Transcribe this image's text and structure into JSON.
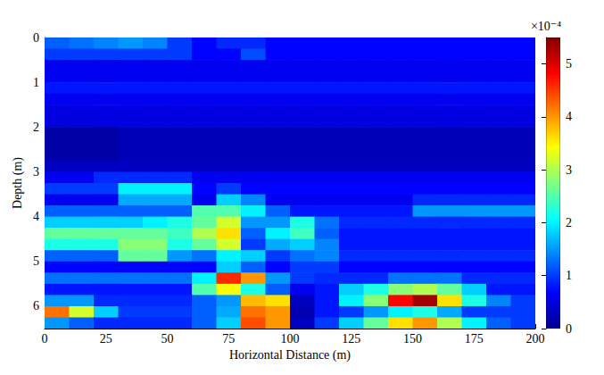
{
  "chart_data": {
    "type": "heatmap",
    "xlabel": "Horizontal Distance (m)",
    "ylabel": "Depth (m)",
    "xlim": [
      0,
      200
    ],
    "xticks": [
      0,
      25,
      50,
      75,
      100,
      125,
      150,
      175,
      200
    ],
    "ylim": [
      0,
      6.5
    ],
    "yticks": [
      0,
      1,
      2,
      3,
      4,
      5,
      6
    ],
    "grid": false,
    "x_bins": [
      0,
      10,
      20,
      30,
      40,
      50,
      60,
      70,
      80,
      90,
      100,
      110,
      120,
      130,
      140,
      150,
      160,
      170,
      180,
      190,
      200
    ],
    "y_bins": [
      0,
      0.25,
      0.5,
      0.75,
      1,
      1.25,
      1.5,
      1.75,
      2,
      2.25,
      2.5,
      2.75,
      3,
      3.25,
      3.5,
      3.75,
      4,
      4.25,
      4.5,
      4.75,
      5,
      5.25,
      5.5,
      5.75,
      6,
      6.25,
      6.5
    ],
    "values": [
      [
        1.2,
        1.3,
        1.4,
        1.5,
        1.4,
        1.0,
        0.7,
        0.9,
        0.9,
        0.7,
        0.7,
        0.7,
        0.7,
        0.7,
        0.7,
        0.7,
        0.7,
        0.7,
        0.7,
        0.7
      ],
      [
        1.0,
        1.0,
        1.0,
        1.0,
        1.0,
        1.0,
        0.7,
        0.7,
        1.1,
        0.7,
        0.7,
        0.7,
        0.7,
        0.7,
        0.7,
        0.7,
        0.7,
        0.7,
        0.7,
        0.7
      ],
      [
        0.6,
        0.6,
        0.6,
        0.6,
        0.6,
        0.6,
        0.6,
        0.6,
        0.6,
        0.6,
        0.6,
        0.6,
        0.6,
        0.6,
        0.6,
        0.6,
        0.6,
        0.6,
        0.6,
        0.6
      ],
      [
        0.6,
        0.6,
        0.6,
        0.6,
        0.6,
        0.6,
        0.6,
        0.6,
        0.6,
        0.6,
        0.6,
        0.6,
        0.6,
        0.6,
        0.6,
        0.6,
        0.6,
        0.6,
        0.6,
        0.6
      ],
      [
        0.8,
        0.8,
        0.8,
        0.8,
        0.8,
        0.8,
        0.8,
        0.8,
        0.8,
        0.8,
        0.8,
        0.8,
        0.8,
        0.8,
        0.8,
        0.8,
        0.8,
        0.8,
        0.8,
        0.8
      ],
      [
        0.6,
        0.6,
        0.6,
        0.6,
        0.6,
        0.6,
        0.6,
        0.6,
        0.6,
        0.6,
        0.6,
        0.6,
        0.6,
        0.6,
        0.6,
        0.6,
        0.6,
        0.6,
        0.6,
        0.6
      ],
      [
        0.5,
        0.5,
        0.5,
        0.5,
        0.5,
        0.5,
        0.5,
        0.5,
        0.5,
        0.5,
        0.5,
        0.5,
        0.5,
        0.5,
        0.5,
        0.5,
        0.5,
        0.5,
        0.5,
        0.5
      ],
      [
        0.5,
        0.5,
        0.5,
        0.5,
        0.5,
        0.5,
        0.5,
        0.5,
        0.5,
        0.5,
        0.5,
        0.5,
        0.5,
        0.5,
        0.5,
        0.5,
        0.5,
        0.5,
        0.5,
        0.5
      ],
      [
        0.15,
        0.15,
        0.15,
        0.25,
        0.25,
        0.25,
        0.25,
        0.25,
        0.25,
        0.25,
        0.25,
        0.25,
        0.25,
        0.25,
        0.25,
        0.25,
        0.25,
        0.25,
        0.25,
        0.25
      ],
      [
        0.15,
        0.15,
        0.15,
        0.25,
        0.25,
        0.25,
        0.25,
        0.25,
        0.25,
        0.25,
        0.25,
        0.25,
        0.25,
        0.25,
        0.25,
        0.25,
        0.25,
        0.25,
        0.25,
        0.25
      ],
      [
        0.15,
        0.15,
        0.15,
        0.25,
        0.25,
        0.25,
        0.25,
        0.25,
        0.25,
        0.25,
        0.25,
        0.25,
        0.25,
        0.25,
        0.25,
        0.25,
        0.25,
        0.25,
        0.25,
        0.25
      ],
      [
        0.3,
        0.3,
        0.3,
        0.3,
        0.3,
        0.3,
        0.3,
        0.3,
        0.3,
        0.3,
        0.3,
        0.3,
        0.3,
        0.3,
        0.3,
        0.3,
        0.3,
        0.3,
        0.3,
        0.3
      ],
      [
        0.6,
        0.6,
        0.9,
        0.9,
        0.9,
        0.9,
        0.6,
        0.6,
        0.6,
        0.6,
        0.6,
        0.6,
        0.6,
        0.6,
        0.6,
        0.6,
        0.6,
        0.6,
        0.6,
        0.6
      ],
      [
        1.0,
        1.0,
        1.0,
        2.0,
        2.0,
        2.0,
        0.7,
        1.0,
        0.7,
        0.7,
        0.7,
        0.7,
        0.7,
        0.7,
        0.7,
        0.7,
        0.7,
        0.7,
        0.7,
        0.7
      ],
      [
        0.6,
        0.6,
        0.6,
        1.6,
        1.6,
        1.6,
        0.6,
        1.8,
        1.4,
        0.6,
        0.6,
        0.6,
        0.6,
        0.6,
        0.6,
        0.9,
        0.9,
        0.9,
        0.9,
        0.9
      ],
      [
        1.2,
        1.2,
        1.2,
        1.2,
        1.2,
        1.2,
        2.5,
        2.5,
        2.0,
        1.2,
        0.8,
        0.8,
        0.8,
        0.8,
        0.8,
        1.5,
        1.5,
        1.5,
        1.5,
        1.5
      ],
      [
        1.8,
        1.8,
        1.8,
        1.8,
        2.0,
        2.2,
        2.6,
        3.2,
        1.5,
        1.5,
        2.2,
        1.3,
        0.9,
        0.9,
        0.9,
        0.9,
        0.9,
        0.9,
        0.9,
        0.9
      ],
      [
        2.6,
        2.6,
        2.6,
        2.6,
        2.6,
        2.4,
        3.0,
        3.6,
        1.2,
        2.0,
        2.4,
        1.2,
        0.8,
        0.8,
        0.8,
        0.8,
        0.8,
        0.8,
        0.8,
        0.8
      ],
      [
        2.2,
        2.2,
        2.2,
        2.8,
        2.8,
        2.2,
        2.6,
        3.2,
        1.0,
        1.6,
        1.8,
        1.4,
        0.8,
        0.8,
        0.8,
        0.8,
        0.8,
        0.8,
        0.8,
        0.8
      ],
      [
        1.2,
        1.2,
        1.2,
        2.6,
        2.6,
        1.5,
        1.3,
        2.0,
        1.8,
        1.0,
        1.3,
        1.4,
        0.9,
        0.9,
        0.9,
        0.9,
        0.9,
        0.9,
        0.9,
        0.9
      ],
      [
        0.7,
        0.7,
        0.7,
        0.7,
        0.7,
        0.7,
        0.7,
        1.8,
        1.2,
        0.7,
        1.0,
        1.0,
        0.7,
        0.7,
        0.7,
        0.7,
        0.7,
        0.7,
        0.7,
        0.7
      ],
      [
        1.3,
        1.3,
        1.3,
        1.3,
        1.3,
        1.3,
        2.0,
        4.6,
        4.0,
        1.5,
        1.0,
        0.9,
        0.9,
        0.9,
        1.3,
        1.3,
        1.3,
        0.9,
        0.9,
        0.9
      ],
      [
        0.8,
        0.8,
        0.8,
        0.8,
        0.8,
        0.8,
        2.5,
        3.4,
        2.2,
        1.2,
        0.6,
        0.8,
        1.8,
        2.2,
        2.8,
        3.0,
        2.6,
        1.8,
        0.8,
        0.8
      ],
      [
        1.5,
        1.5,
        0.9,
        0.9,
        0.9,
        0.9,
        1.2,
        1.5,
        3.8,
        3.6,
        0.3,
        0.8,
        2.0,
        2.8,
        4.8,
        5.3,
        3.6,
        2.2,
        1.4,
        1.0
      ],
      [
        4.2,
        3.2,
        1.8,
        1.0,
        1.0,
        1.0,
        1.2,
        1.6,
        4.2,
        4.0,
        0.2,
        0.8,
        1.0,
        1.5,
        2.0,
        2.2,
        1.6,
        1.0,
        1.0,
        1.0
      ],
      [
        1.5,
        1.2,
        0.9,
        0.9,
        0.9,
        0.9,
        1.2,
        1.8,
        4.4,
        4.0,
        0.3,
        1.0,
        1.8,
        2.6,
        3.6,
        4.0,
        3.0,
        2.0,
        1.2,
        1.0
      ]
    ],
    "colorbar_range": [
      0,
      5.5
    ],
    "colorbar_ticks": [
      0,
      1,
      2,
      3,
      4,
      5
    ],
    "colorbar_label": "×10⁻⁴"
  }
}
